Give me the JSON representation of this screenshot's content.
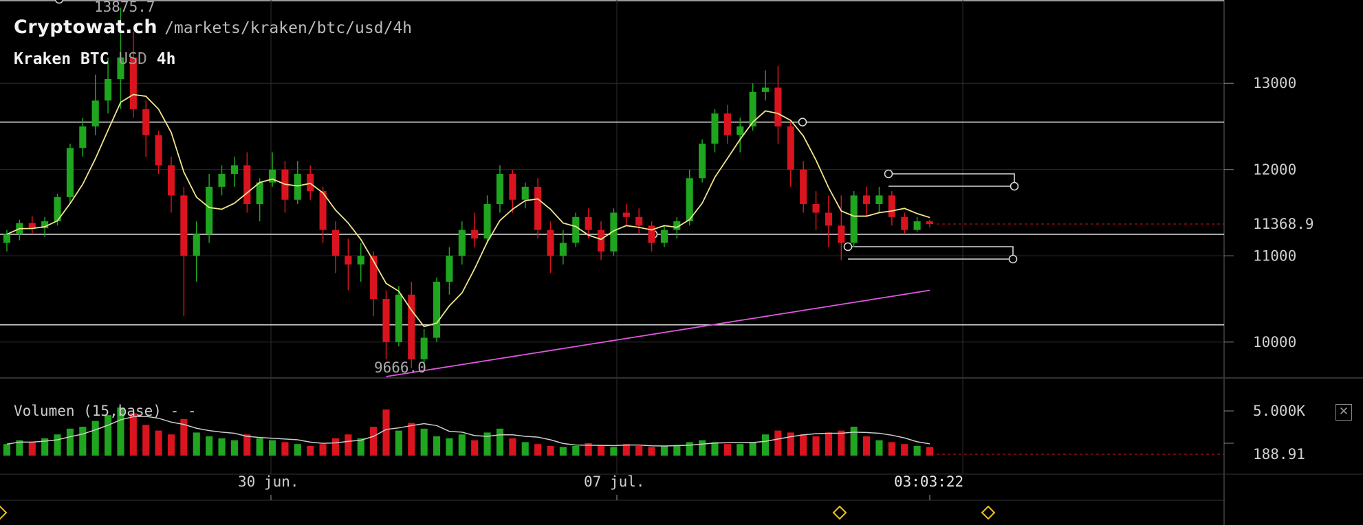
{
  "header": {
    "brand": "Cryptowat.ch",
    "path": "/markets/kraken/btc/usd/4h",
    "exchange": "Kraken",
    "base": "BTC",
    "quote": "USD",
    "interval": "4h"
  },
  "price_axis": {
    "ticks": [
      "13000",
      "12000",
      "11000",
      "10000"
    ],
    "current_price": "11368.9",
    "high_label": "13875.7",
    "low_label": "9666.0"
  },
  "volume_panel": {
    "label": "Volumen (15,base) - -",
    "axis_max": "5.000K",
    "current_volume": "188.91",
    "close_icon": "close-icon"
  },
  "time_axis": {
    "ticks": [
      "30 jun.",
      "07 jul."
    ],
    "crosshair_time": "03:03:22"
  },
  "colors": {
    "up": "#1fa51f",
    "down": "#d9141e",
    "ma_fast": "#f0e68c",
    "ma_slow": "#e056e0",
    "background": "#000000",
    "grid": "#2e2e2e",
    "marker": "#f0c419"
  },
  "chart_data": {
    "type": "candlestick",
    "ylim": [
      9600,
      13950
    ],
    "candles_approx": [
      {
        "o": 11150,
        "h": 11300,
        "l": 11050,
        "c": 11250
      },
      {
        "o": 11250,
        "h": 11420,
        "l": 11180,
        "c": 11380
      },
      {
        "o": 11380,
        "h": 11460,
        "l": 11250,
        "c": 11320
      },
      {
        "o": 11320,
        "h": 11450,
        "l": 11220,
        "c": 11400
      },
      {
        "o": 11400,
        "h": 11720,
        "l": 11350,
        "c": 11680
      },
      {
        "o": 11680,
        "h": 12300,
        "l": 11600,
        "c": 12250
      },
      {
        "o": 12250,
        "h": 12600,
        "l": 12150,
        "c": 12500
      },
      {
        "o": 12500,
        "h": 13100,
        "l": 12400,
        "c": 12800
      },
      {
        "o": 12800,
        "h": 13300,
        "l": 12650,
        "c": 13050
      },
      {
        "o": 13050,
        "h": 13875.7,
        "l": 12700,
        "c": 13300
      },
      {
        "o": 13300,
        "h": 13600,
        "l": 12600,
        "c": 12700
      },
      {
        "o": 12700,
        "h": 12800,
        "l": 12150,
        "c": 12400
      },
      {
        "o": 12400,
        "h": 12450,
        "l": 11950,
        "c": 12050
      },
      {
        "o": 12050,
        "h": 12150,
        "l": 11500,
        "c": 11700
      },
      {
        "o": 11700,
        "h": 11800,
        "l": 10300,
        "c": 11000
      },
      {
        "o": 11000,
        "h": 11400,
        "l": 10700,
        "c": 11250
      },
      {
        "o": 11250,
        "h": 11950,
        "l": 11150,
        "c": 11800
      },
      {
        "o": 11800,
        "h": 12050,
        "l": 11700,
        "c": 11950
      },
      {
        "o": 11950,
        "h": 12150,
        "l": 11800,
        "c": 12050
      },
      {
        "o": 12050,
        "h": 12200,
        "l": 11500,
        "c": 11600
      },
      {
        "o": 11600,
        "h": 11900,
        "l": 11400,
        "c": 11850
      },
      {
        "o": 11850,
        "h": 12200,
        "l": 11800,
        "c": 12000
      },
      {
        "o": 12000,
        "h": 12100,
        "l": 11500,
        "c": 11650
      },
      {
        "o": 11650,
        "h": 12100,
        "l": 11600,
        "c": 11950
      },
      {
        "o": 11950,
        "h": 12050,
        "l": 11650,
        "c": 11750
      },
      {
        "o": 11750,
        "h": 11800,
        "l": 11150,
        "c": 11300
      },
      {
        "o": 11300,
        "h": 11400,
        "l": 10800,
        "c": 11000
      },
      {
        "o": 11000,
        "h": 11200,
        "l": 10600,
        "c": 10900
      },
      {
        "o": 10900,
        "h": 11150,
        "l": 10700,
        "c": 11000
      },
      {
        "o": 11000,
        "h": 11050,
        "l": 10300,
        "c": 10500
      },
      {
        "o": 10500,
        "h": 10600,
        "l": 9800,
        "c": 10000
      },
      {
        "o": 10000,
        "h": 10650,
        "l": 9950,
        "c": 10550
      },
      {
        "o": 10550,
        "h": 10700,
        "l": 9700,
        "c": 9800
      },
      {
        "o": 9800,
        "h": 10150,
        "l": 9666.0,
        "c": 10050
      },
      {
        "o": 10050,
        "h": 10750,
        "l": 10000,
        "c": 10700
      },
      {
        "o": 10700,
        "h": 11100,
        "l": 10550,
        "c": 11000
      },
      {
        "o": 11000,
        "h": 11400,
        "l": 10900,
        "c": 11300
      },
      {
        "o": 11300,
        "h": 11500,
        "l": 11100,
        "c": 11200
      },
      {
        "o": 11200,
        "h": 11700,
        "l": 11150,
        "c": 11600
      },
      {
        "o": 11600,
        "h": 12050,
        "l": 11500,
        "c": 11950
      },
      {
        "o": 11950,
        "h": 12000,
        "l": 11500,
        "c": 11650
      },
      {
        "o": 11650,
        "h": 11850,
        "l": 11550,
        "c": 11800
      },
      {
        "o": 11800,
        "h": 11900,
        "l": 11200,
        "c": 11300
      },
      {
        "o": 11300,
        "h": 11400,
        "l": 10800,
        "c": 11000
      },
      {
        "o": 11000,
        "h": 11300,
        "l": 10900,
        "c": 11150
      },
      {
        "o": 11150,
        "h": 11500,
        "l": 11100,
        "c": 11450
      },
      {
        "o": 11450,
        "h": 11550,
        "l": 11200,
        "c": 11300
      },
      {
        "o": 11300,
        "h": 11400,
        "l": 10950,
        "c": 11050
      },
      {
        "o": 11050,
        "h": 11550,
        "l": 11000,
        "c": 11500
      },
      {
        "o": 11500,
        "h": 11600,
        "l": 11350,
        "c": 11450
      },
      {
        "o": 11450,
        "h": 11550,
        "l": 11250,
        "c": 11350
      },
      {
        "o": 11350,
        "h": 11400,
        "l": 11050,
        "c": 11150
      },
      {
        "o": 11150,
        "h": 11350,
        "l": 11100,
        "c": 11300
      },
      {
        "o": 11300,
        "h": 11450,
        "l": 11200,
        "c": 11400
      },
      {
        "o": 11400,
        "h": 12000,
        "l": 11350,
        "c": 11900
      },
      {
        "o": 11900,
        "h": 12350,
        "l": 11850,
        "c": 12300
      },
      {
        "o": 12300,
        "h": 12700,
        "l": 12200,
        "c": 12650
      },
      {
        "o": 12650,
        "h": 12750,
        "l": 12300,
        "c": 12400
      },
      {
        "o": 12400,
        "h": 12600,
        "l": 12200,
        "c": 12500
      },
      {
        "o": 12500,
        "h": 13000,
        "l": 12450,
        "c": 12900
      },
      {
        "o": 12900,
        "h": 13150,
        "l": 12800,
        "c": 12950
      },
      {
        "o": 12950,
        "h": 13200,
        "l": 12300,
        "c": 12500
      },
      {
        "o": 12500,
        "h": 12550,
        "l": 11800,
        "c": 12000
      },
      {
        "o": 12000,
        "h": 12100,
        "l": 11500,
        "c": 11600
      },
      {
        "o": 11600,
        "h": 11750,
        "l": 11300,
        "c": 11500
      },
      {
        "o": 11500,
        "h": 11700,
        "l": 11100,
        "c": 11350
      },
      {
        "o": 11350,
        "h": 11700,
        "l": 10950,
        "c": 11150
      },
      {
        "o": 11150,
        "h": 11750,
        "l": 11100,
        "c": 11700
      },
      {
        "o": 11700,
        "h": 11800,
        "l": 11450,
        "c": 11600
      },
      {
        "o": 11600,
        "h": 11800,
        "l": 11500,
        "c": 11700
      },
      {
        "o": 11700,
        "h": 11750,
        "l": 11350,
        "c": 11450
      },
      {
        "o": 11450,
        "h": 11500,
        "l": 11250,
        "c": 11300
      },
      {
        "o": 11300,
        "h": 11450,
        "l": 11280,
        "c": 11400
      },
      {
        "o": 11400,
        "h": 11420,
        "l": 11330,
        "c": 11368.9
      }
    ],
    "volume_approx": [
      1.2,
      1.6,
      1.4,
      1.8,
      2.2,
      2.8,
      3.0,
      3.6,
      4.2,
      5.0,
      4.4,
      3.2,
      2.6,
      2.2,
      3.8,
      2.4,
      2.0,
      1.8,
      1.6,
      2.2,
      1.8,
      1.6,
      1.4,
      1.2,
      1.0,
      1.2,
      1.8,
      2.2,
      1.8,
      3.0,
      4.8,
      2.6,
      3.4,
      2.8,
      2.0,
      1.8,
      2.2,
      1.6,
      2.4,
      2.8,
      1.8,
      1.4,
      1.2,
      1.0,
      0.9,
      1.0,
      1.3,
      1.1,
      0.9,
      1.2,
      1.0,
      0.9,
      1.0,
      1.1,
      1.4,
      1.6,
      1.4,
      1.2,
      1.2,
      1.4,
      2.2,
      2.6,
      2.4,
      2.2,
      2.0,
      2.4,
      2.6,
      3.0,
      2.0,
      1.6,
      1.4,
      1.2,
      1.0,
      0.9
    ],
    "volume_ylim": [
      0,
      5000
    ],
    "series": []
  }
}
